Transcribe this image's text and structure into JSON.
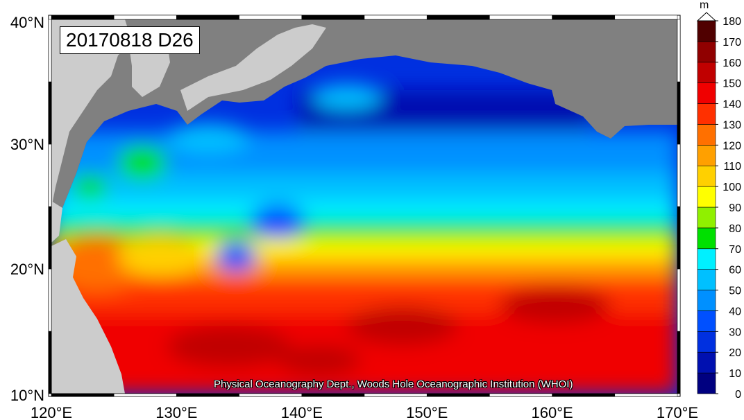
{
  "map": {
    "date_label": "20170818 D26",
    "credit": "Physical Oceanography Dept., Woods Hole Oceanographic Institution (WHOI)",
    "lat_ticks": [
      {
        "value": 40,
        "label": "40°N"
      },
      {
        "value": 30,
        "label": "30°N"
      },
      {
        "value": 20,
        "label": "20°N"
      },
      {
        "value": 10,
        "label": "10°N"
      }
    ],
    "lon_ticks": [
      {
        "value": 120,
        "label": "120°E"
      },
      {
        "value": 130,
        "label": "130°E"
      },
      {
        "value": 140,
        "label": "140°E"
      },
      {
        "value": 150,
        "label": "150°E"
      },
      {
        "value": 160,
        "label": "160°E"
      },
      {
        "value": 170,
        "label": "170°E"
      }
    ],
    "extent": {
      "lon_min": 120,
      "lon_max": 170,
      "lat_min": 10,
      "lat_max": 40
    },
    "land_color": "#808080",
    "land_outside_color": "#cccccc"
  },
  "colorbar": {
    "unit": "m",
    "levels": [
      0,
      10,
      20,
      30,
      40,
      50,
      60,
      70,
      80,
      90,
      100,
      110,
      120,
      130,
      140,
      150,
      160,
      170,
      180
    ],
    "colors": [
      "#000080",
      "#0010b0",
      "#0030e0",
      "#0050ff",
      "#0090ff",
      "#00c0ff",
      "#00f0ff",
      "#00e000",
      "#90f000",
      "#ffff00",
      "#ffd000",
      "#ffa000",
      "#ff7000",
      "#ff3000",
      "#f00000",
      "#c00000",
      "#900000",
      "#500000"
    ]
  }
}
